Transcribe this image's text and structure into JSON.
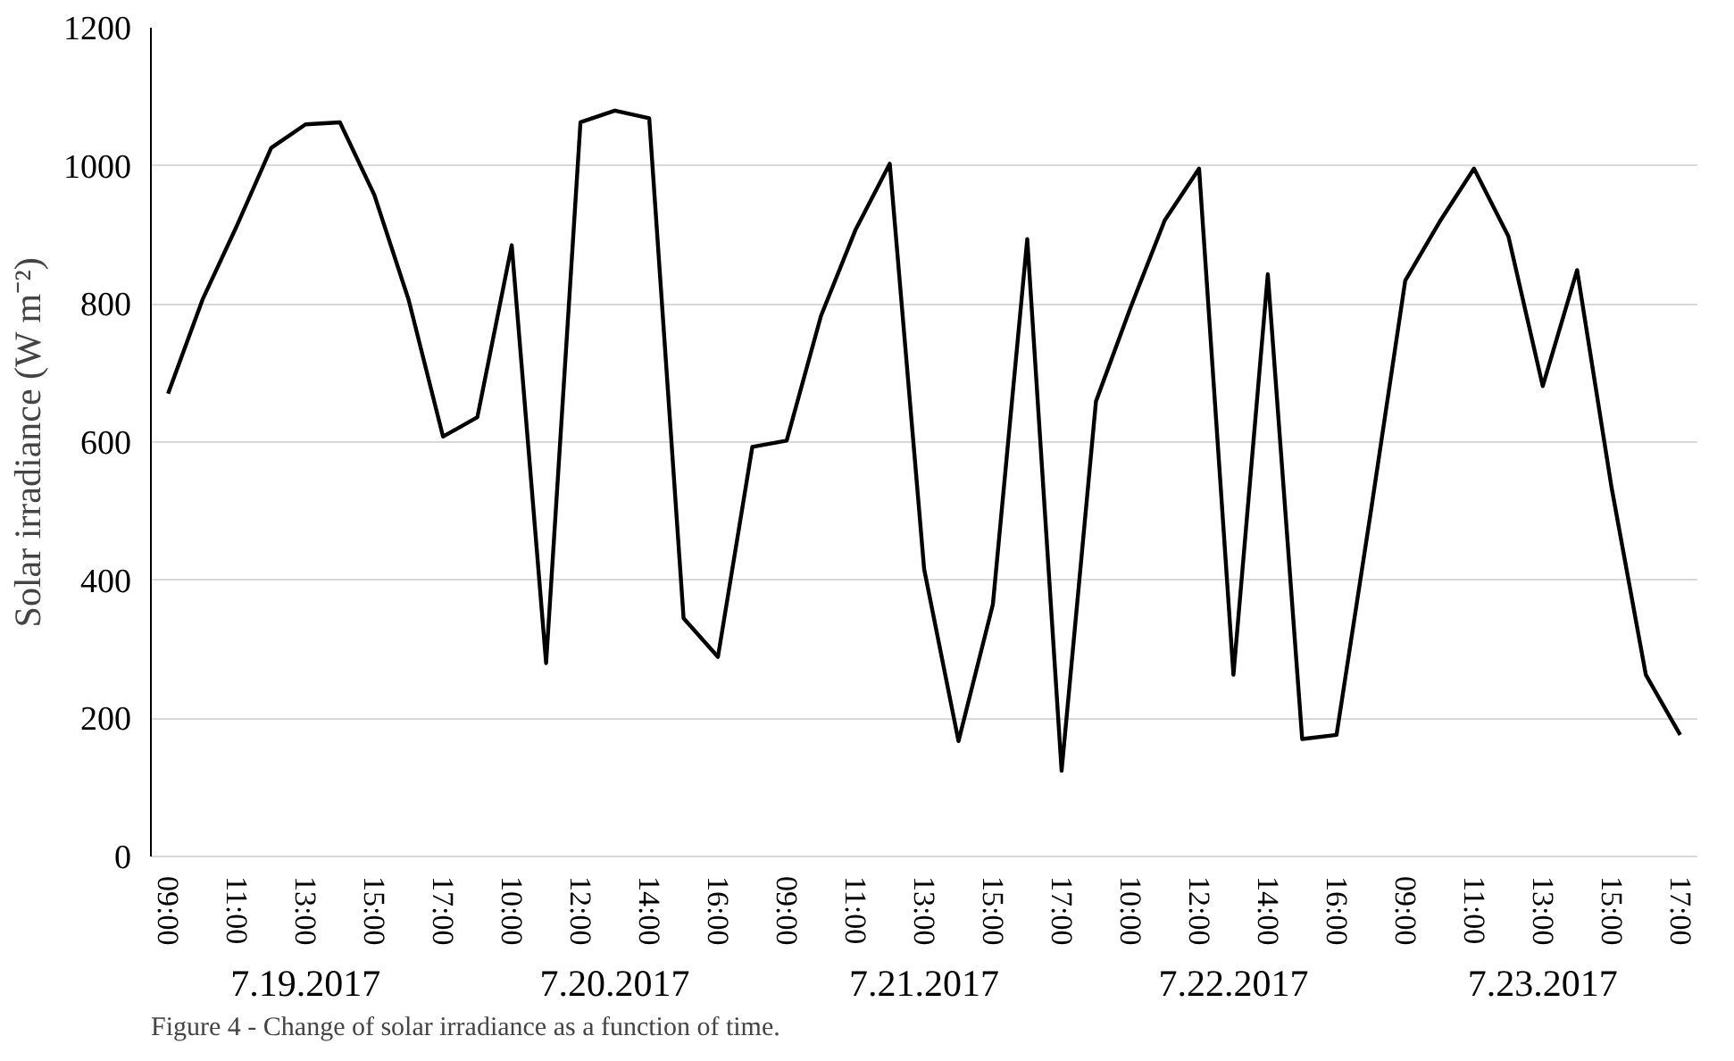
{
  "chart_data": {
    "type": "line",
    "ylabel": "Solar irradiance (W m⁻²)",
    "categories": [
      "09:00",
      null,
      "11:00",
      null,
      "13:00",
      null,
      "15:00",
      null,
      "17:00",
      null,
      "10:00",
      null,
      "12:00",
      null,
      "14:00",
      null,
      "16:00",
      null,
      "09:00",
      null,
      "11:00",
      null,
      "13:00",
      null,
      "15:00",
      null,
      "17:00",
      null,
      "10:00",
      null,
      "12:00",
      null,
      "14:00",
      null,
      "16:00",
      null,
      "09:00",
      null,
      "11:00",
      null,
      "13:00",
      null,
      "15:00",
      null,
      "17:00"
    ],
    "series": [
      {
        "color": "#000000",
        "values": [
          670,
          806,
          913,
          1026,
          1060,
          1063,
          958,
          806,
          608,
          636,
          885,
          280,
          1063,
          1080,
          1069,
          345,
          289,
          593,
          602,
          783,
          907,
          1003,
          416,
          167,
          365,
          894,
          124,
          659,
          794,
          921,
          996,
          263,
          843,
          170,
          176,
          500,
          834,
          919,
          996,
          898,
          681,
          849,
          535,
          263,
          176
        ]
      }
    ],
    "ylim": [
      0,
      1200
    ],
    "yticks": [
      0,
      200,
      400,
      600,
      800,
      1000,
      1200
    ],
    "grid": "y",
    "marker": "none",
    "line_style": "solid",
    "annotations": [
      "7.19.2017",
      "7.20.2017",
      "7.21.2017",
      "7.22.2017",
      "7.23.2017",
      "Figure 4 - Change of solar irradiance as a function of time."
    ]
  }
}
